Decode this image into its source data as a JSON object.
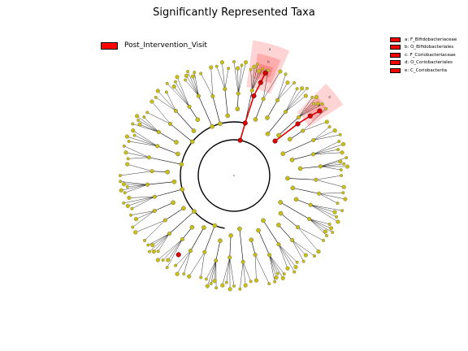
{
  "title": "Significantly Represented Taxa",
  "legend": {
    "group_label": "Post_Intervention_Visit",
    "group_color": "#ff0000"
  },
  "taxon_keys": [
    {
      "letter": "a",
      "text": "a: F_Bifidobacteriaceae"
    },
    {
      "letter": "b",
      "text": "b: O_Bifidobacteriales"
    },
    {
      "letter": "c",
      "text": "c: F_Coriobacteriaceae"
    },
    {
      "letter": "d",
      "text": "d: O_Coriobacteriales"
    },
    {
      "letter": "e",
      "text": "e: C_Coriobacteriia"
    }
  ],
  "colors": {
    "node_default": "#c8be14",
    "node_highlight": "#e00000",
    "edge": "#000000",
    "shade_light": "#ffb0b0",
    "shade_dark": "#ff6060"
  }
}
